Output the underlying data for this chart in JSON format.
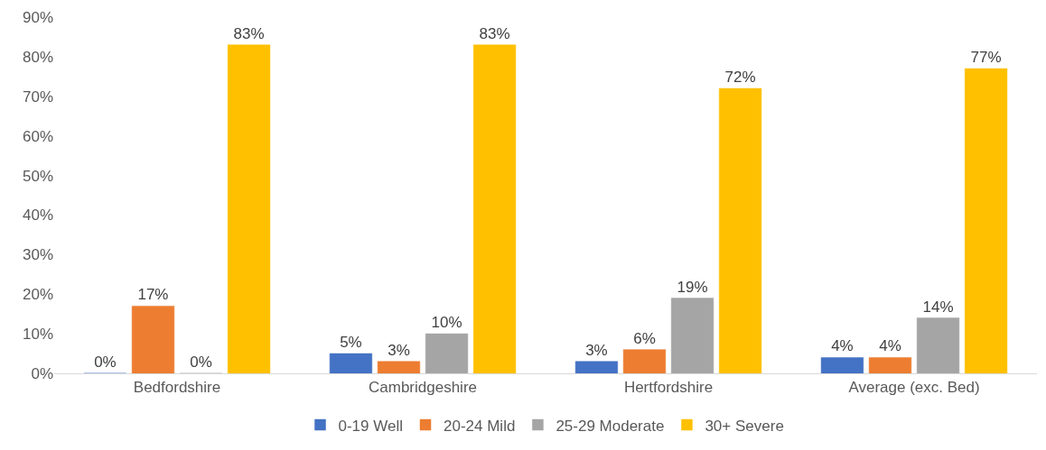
{
  "chart_data": {
    "type": "bar",
    "categories": [
      "Bedfordshire",
      "Cambridgeshire",
      "Hertfordshire",
      "Average (exc. Bed)"
    ],
    "series": [
      {
        "name": "0-19 Well",
        "color": "#4472c4",
        "values": [
          0,
          5,
          3,
          4
        ],
        "value_labels": [
          "0%",
          "5%",
          "3%",
          "4%"
        ]
      },
      {
        "name": "20-24 Mild",
        "color": "#ed7d31",
        "values": [
          17,
          3,
          6,
          4
        ],
        "value_labels": [
          "17%",
          "3%",
          "6%",
          "4%"
        ]
      },
      {
        "name": "25-29 Moderate",
        "color": "#a5a5a5",
        "values": [
          0,
          10,
          19,
          14
        ],
        "value_labels": [
          "0%",
          "10%",
          "19%",
          "14%"
        ]
      },
      {
        "name": "30+ Severe",
        "color": "#ffc000",
        "values": [
          83,
          83,
          72,
          77
        ],
        "value_labels": [
          "83%",
          "83%",
          "72%",
          "77%"
        ]
      }
    ],
    "ylim": [
      0,
      90
    ],
    "yticks": [
      {
        "value": 0,
        "label": "0%"
      },
      {
        "value": 10,
        "label": "10%"
      },
      {
        "value": 20,
        "label": "20%"
      },
      {
        "value": 30,
        "label": "30%"
      },
      {
        "value": 40,
        "label": "40%"
      },
      {
        "value": 50,
        "label": "50%"
      },
      {
        "value": 60,
        "label": "60%"
      },
      {
        "value": 70,
        "label": "70%"
      },
      {
        "value": 80,
        "label": "80%"
      },
      {
        "value": 90,
        "label": "90%"
      }
    ],
    "legend": "bottom",
    "grid": false
  }
}
